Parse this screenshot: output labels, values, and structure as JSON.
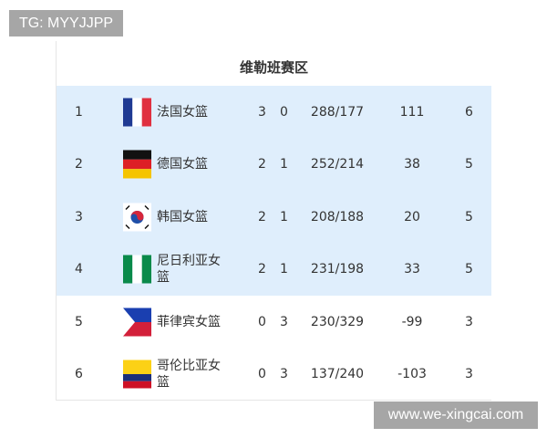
{
  "watermarks": {
    "top": "TG: MYYJJPP",
    "bottom": "www.we-xingcai.com"
  },
  "title": "维勒班赛区",
  "rows": [
    {
      "rank": "1",
      "flag": "france",
      "team": "法国女篮",
      "w": "3",
      "l": "0",
      "score": "288/177",
      "diff": "111",
      "pts": "6",
      "highlight": true
    },
    {
      "rank": "2",
      "flag": "germany",
      "team": "德国女篮",
      "w": "2",
      "l": "1",
      "score": "252/214",
      "diff": "38",
      "pts": "5",
      "highlight": true
    },
    {
      "rank": "3",
      "flag": "south-korea",
      "team": "韩国女篮",
      "w": "2",
      "l": "1",
      "score": "208/188",
      "diff": "20",
      "pts": "5",
      "highlight": true
    },
    {
      "rank": "4",
      "flag": "nigeria",
      "team": "尼日利亚女篮",
      "w": "2",
      "l": "1",
      "score": "231/198",
      "diff": "33",
      "pts": "5",
      "highlight": true
    },
    {
      "rank": "5",
      "flag": "philippines",
      "team": "菲律宾女篮",
      "w": "0",
      "l": "3",
      "score": "230/329",
      "diff": "-99",
      "pts": "3",
      "highlight": false
    },
    {
      "rank": "6",
      "flag": "colombia",
      "team": "哥伦比亚女篮",
      "w": "0",
      "l": "3",
      "score": "137/240",
      "diff": "-103",
      "pts": "3",
      "highlight": false
    }
  ],
  "colors": {
    "highlight": "#dfeefc"
  }
}
